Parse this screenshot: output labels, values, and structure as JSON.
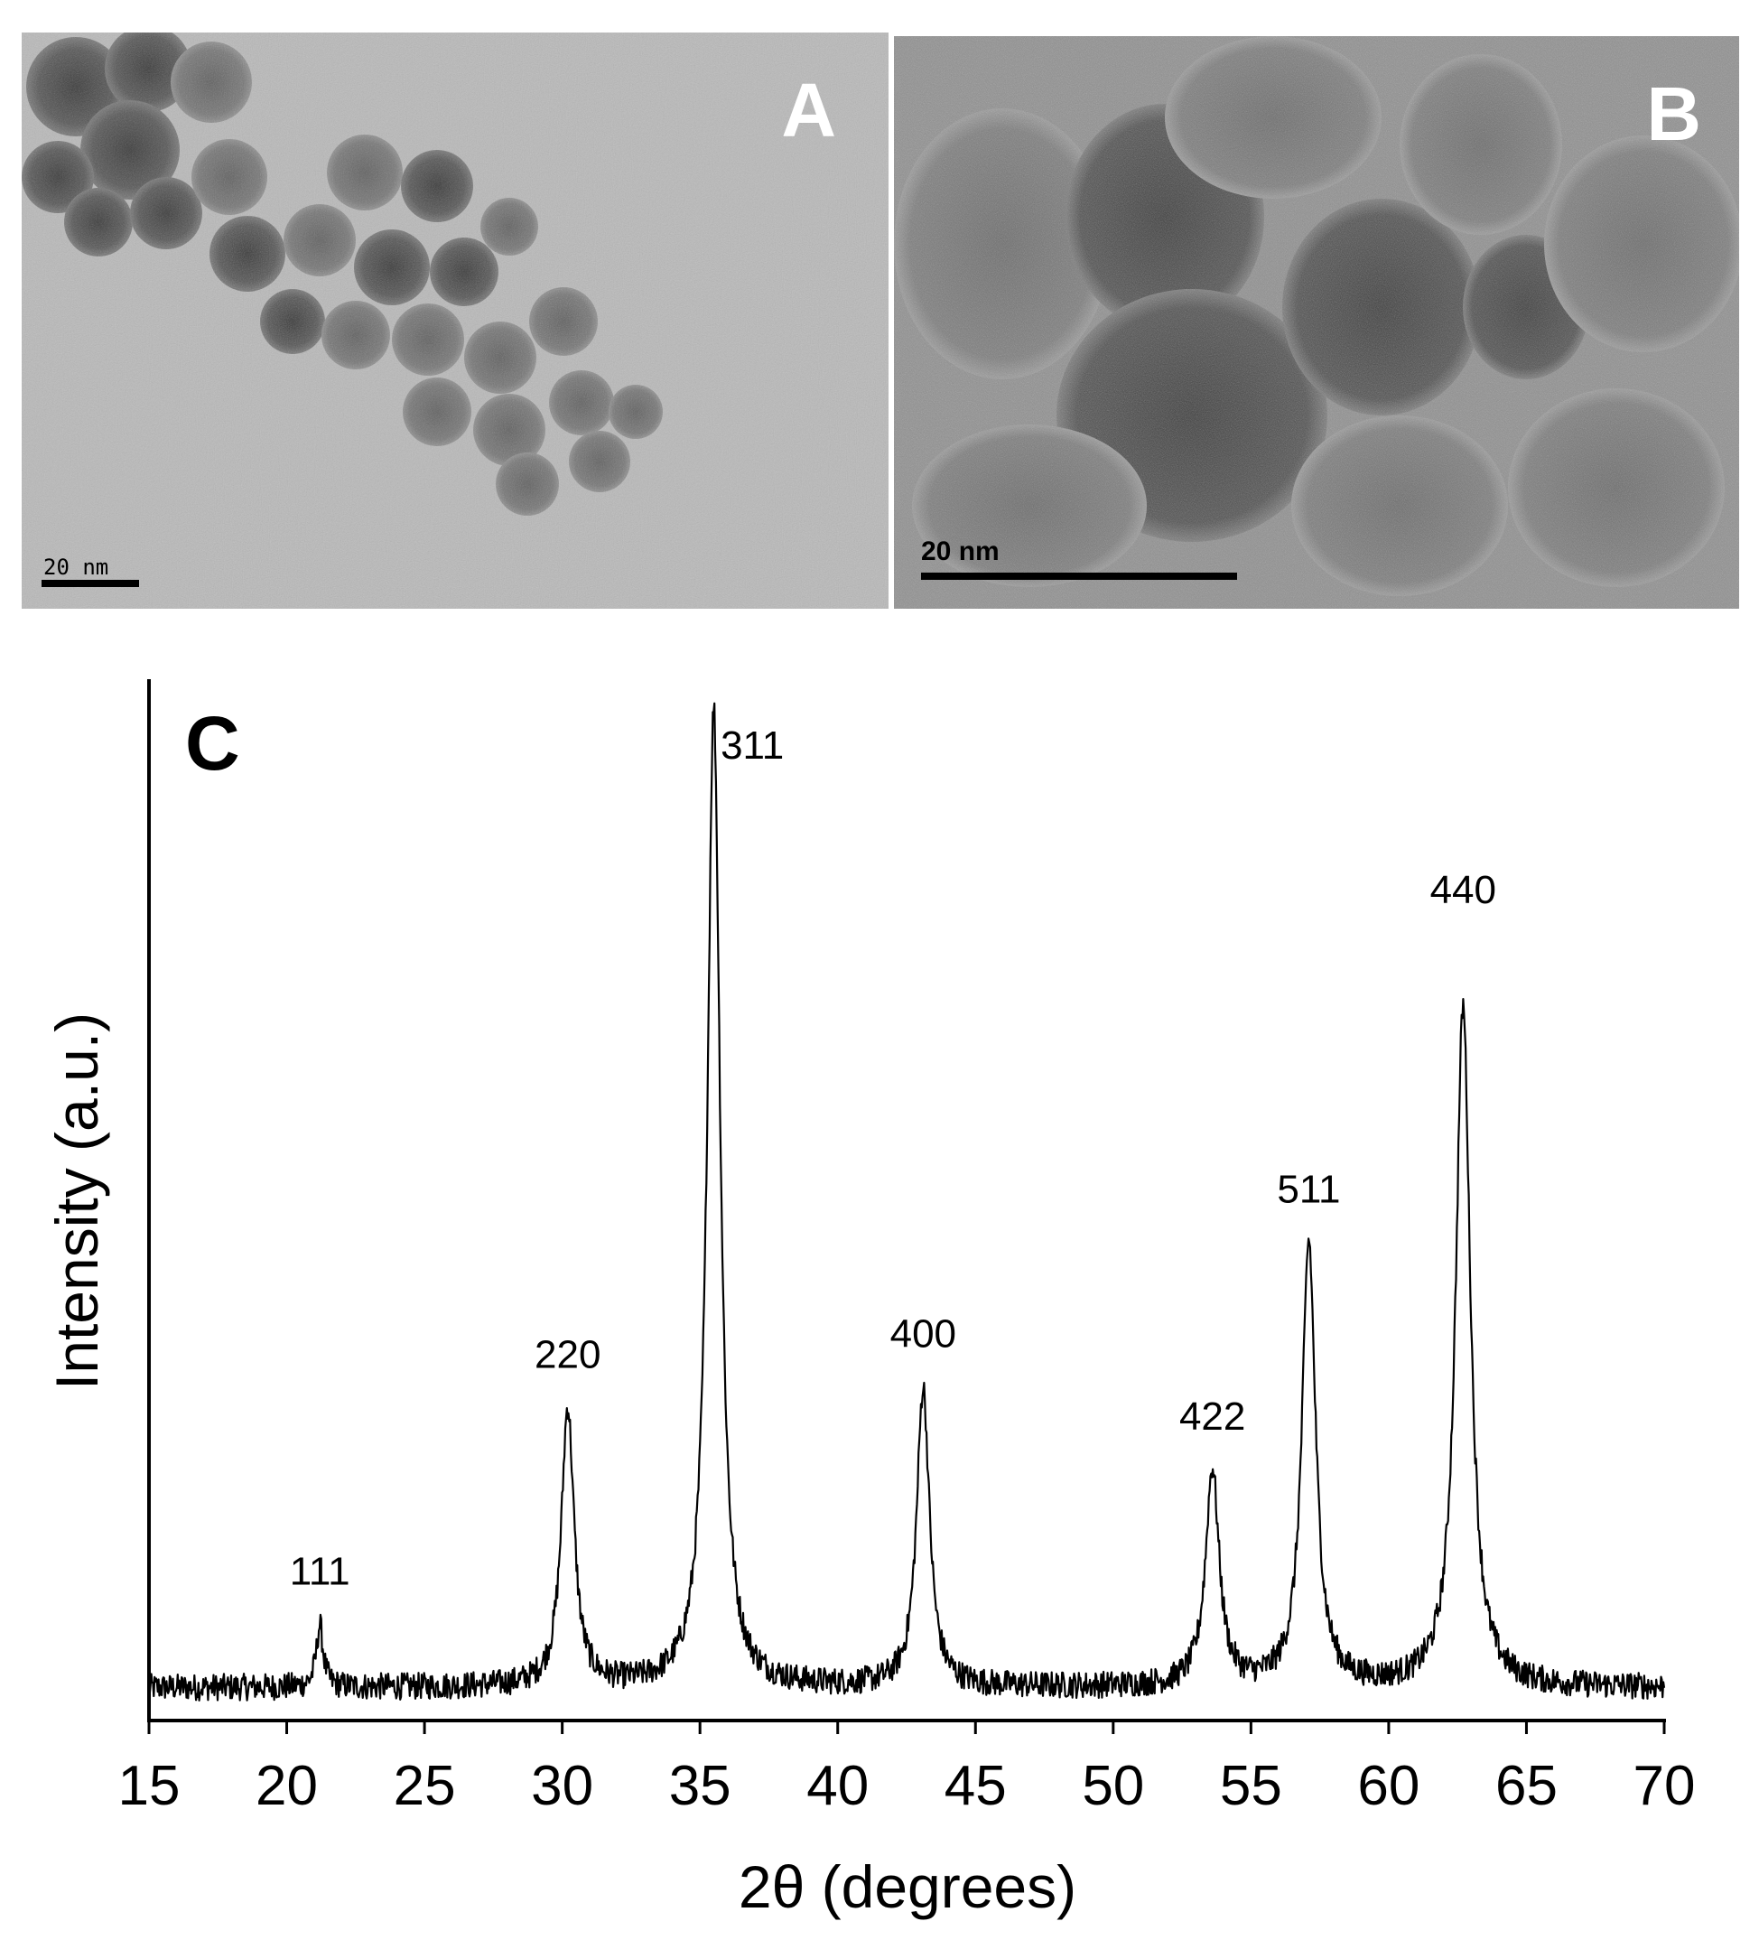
{
  "panels": {
    "a": {
      "letter": "A",
      "scale_label": "20 nm"
    },
    "b": {
      "letter": "B",
      "scale_label": "20 nm"
    }
  },
  "chart_data": {
    "type": "line",
    "panel_letter": "C",
    "xlabel": "2θ (degrees)",
    "ylabel": "Intensity (a.u.)",
    "xlim": [
      15,
      70
    ],
    "ylim": [
      0,
      100
    ],
    "xticks": [
      15,
      20,
      25,
      30,
      35,
      40,
      45,
      50,
      55,
      60,
      65,
      70
    ],
    "baseline": 3,
    "peaks": [
      {
        "label": "111",
        "x": 21.2,
        "height": 6,
        "width": 0.15
      },
      {
        "label": "220",
        "x": 30.2,
        "height": 27,
        "width": 0.28
      },
      {
        "label": "311",
        "x": 35.5,
        "height": 95,
        "width": 0.28
      },
      {
        "label": "400",
        "x": 43.1,
        "height": 29,
        "width": 0.28
      },
      {
        "label": "422",
        "x": 53.6,
        "height": 21,
        "width": 0.3
      },
      {
        "label": "511",
        "x": 57.1,
        "height": 43,
        "width": 0.3
      },
      {
        "label": "440",
        "x": 62.7,
        "height": 66,
        "width": 0.32
      }
    ],
    "label_positions": [
      {
        "label": "111",
        "x": 21.2,
        "y": 13
      },
      {
        "label": "220",
        "x": 30.2,
        "y": 34
      },
      {
        "label": "311",
        "x": 36.9,
        "y": 93
      },
      {
        "label": "400",
        "x": 43.1,
        "y": 36
      },
      {
        "label": "422",
        "x": 53.6,
        "y": 28
      },
      {
        "label": "511",
        "x": 57.1,
        "y": 50
      },
      {
        "label": "440",
        "x": 62.7,
        "y": 79
      }
    ]
  }
}
